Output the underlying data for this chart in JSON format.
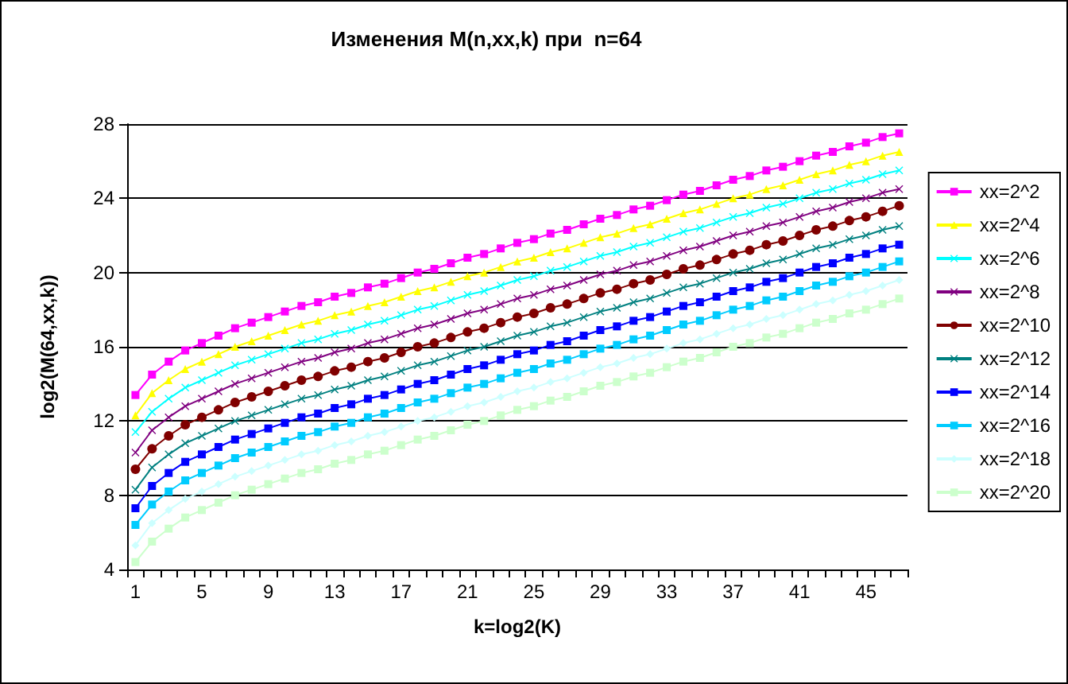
{
  "chart_data": {
    "type": "line",
    "title": "Изменения M(n,xx,k) при  n=64",
    "xlabel": "k=log2(K)",
    "ylabel": "log2(M(64,xx,k))",
    "categories": [
      "1",
      null,
      null,
      null,
      "5",
      null,
      null,
      null,
      "9",
      null,
      null,
      null,
      "13",
      null,
      null,
      null,
      "17",
      null,
      null,
      null,
      "21",
      null,
      null,
      null,
      "25",
      null,
      null,
      null,
      "29",
      null,
      null,
      null,
      "33",
      null,
      null,
      null,
      "37",
      null,
      null,
      null,
      "41",
      null,
      null,
      null,
      "45",
      null,
      null
    ],
    "ylim": [
      4,
      28
    ],
    "yticks": [
      4,
      8,
      12,
      16,
      20,
      24,
      28
    ],
    "grid": "y",
    "legend": "right",
    "series": [
      {
        "name": "xx=2^2",
        "color": "#ff00ff",
        "marker": "square",
        "values": [
          13.4,
          14.5,
          15.2,
          15.8,
          16.2,
          16.6,
          17.0,
          17.3,
          17.6,
          17.9,
          18.2,
          18.4,
          18.7,
          18.9,
          19.2,
          19.4,
          19.7,
          20.0,
          20.2,
          20.5,
          20.8,
          21.0,
          21.3,
          21.6,
          21.8,
          22.1,
          22.3,
          22.6,
          22.9,
          23.1,
          23.4,
          23.6,
          23.9,
          24.2,
          24.4,
          24.7,
          25.0,
          25.2,
          25.5,
          25.7,
          26.0,
          26.3,
          26.5,
          26.8,
          27.0,
          27.3,
          27.5
        ]
      },
      {
        "name": "xx=2^4",
        "color": "#ffff00",
        "marker": "triangle",
        "values": [
          12.3,
          13.5,
          14.2,
          14.8,
          15.2,
          15.6,
          16.0,
          16.3,
          16.6,
          16.9,
          17.2,
          17.4,
          17.7,
          17.9,
          18.2,
          18.4,
          18.7,
          19.0,
          19.2,
          19.5,
          19.8,
          20.0,
          20.3,
          20.6,
          20.8,
          21.1,
          21.3,
          21.6,
          21.9,
          22.1,
          22.4,
          22.6,
          22.9,
          23.2,
          23.4,
          23.7,
          24.0,
          24.2,
          24.5,
          24.7,
          25.0,
          25.3,
          25.5,
          25.8,
          26.0,
          26.3,
          26.5
        ]
      },
      {
        "name": "xx=2^6",
        "color": "#00ffff",
        "marker": "cross",
        "values": [
          11.4,
          12.5,
          13.2,
          13.8,
          14.2,
          14.6,
          15.0,
          15.3,
          15.6,
          15.9,
          16.2,
          16.4,
          16.7,
          16.9,
          17.2,
          17.4,
          17.7,
          18.0,
          18.2,
          18.5,
          18.8,
          19.0,
          19.3,
          19.6,
          19.8,
          20.1,
          20.3,
          20.6,
          20.9,
          21.1,
          21.4,
          21.6,
          21.9,
          22.2,
          22.4,
          22.7,
          23.0,
          23.2,
          23.5,
          23.7,
          24.0,
          24.3,
          24.5,
          24.8,
          25.0,
          25.3,
          25.5
        ]
      },
      {
        "name": "xx=2^8",
        "color": "#800080",
        "marker": "cross",
        "values": [
          10.3,
          11.5,
          12.2,
          12.8,
          13.2,
          13.6,
          14.0,
          14.3,
          14.6,
          14.9,
          15.2,
          15.4,
          15.7,
          15.9,
          16.2,
          16.4,
          16.7,
          17.0,
          17.2,
          17.5,
          17.8,
          18.0,
          18.3,
          18.6,
          18.8,
          19.1,
          19.3,
          19.6,
          19.9,
          20.1,
          20.4,
          20.6,
          20.9,
          21.2,
          21.4,
          21.7,
          22.0,
          22.2,
          22.5,
          22.7,
          23.0,
          23.3,
          23.5,
          23.8,
          24.0,
          24.3,
          24.5
        ]
      },
      {
        "name": "xx=2^10",
        "color": "#800000",
        "marker": "circle",
        "values": [
          9.4,
          10.5,
          11.2,
          11.8,
          12.2,
          12.6,
          13.0,
          13.3,
          13.6,
          13.9,
          14.2,
          14.4,
          14.7,
          14.9,
          15.2,
          15.4,
          15.7,
          16.0,
          16.2,
          16.5,
          16.8,
          17.0,
          17.3,
          17.6,
          17.8,
          18.1,
          18.3,
          18.6,
          18.9,
          19.1,
          19.4,
          19.6,
          19.9,
          20.2,
          20.4,
          20.7,
          21.0,
          21.2,
          21.5,
          21.7,
          22.0,
          22.3,
          22.5,
          22.8,
          23.0,
          23.3,
          23.6
        ]
      },
      {
        "name": "xx=2^12",
        "color": "#008080",
        "marker": "cross",
        "values": [
          8.3,
          9.5,
          10.2,
          10.8,
          11.2,
          11.6,
          12.0,
          12.3,
          12.6,
          12.9,
          13.2,
          13.4,
          13.7,
          13.9,
          14.2,
          14.4,
          14.7,
          15.0,
          15.2,
          15.5,
          15.8,
          16.0,
          16.3,
          16.6,
          16.8,
          17.1,
          17.3,
          17.6,
          17.9,
          18.1,
          18.4,
          18.6,
          18.9,
          19.2,
          19.4,
          19.7,
          20.0,
          20.2,
          20.5,
          20.7,
          21.0,
          21.3,
          21.5,
          21.8,
          22.0,
          22.3,
          22.5
        ]
      },
      {
        "name": "xx=2^14",
        "color": "#0000ff",
        "marker": "square",
        "values": [
          7.3,
          8.5,
          9.2,
          9.8,
          10.2,
          10.6,
          11.0,
          11.3,
          11.6,
          11.9,
          12.2,
          12.4,
          12.7,
          12.9,
          13.2,
          13.4,
          13.7,
          14.0,
          14.2,
          14.5,
          14.8,
          15.0,
          15.3,
          15.6,
          15.8,
          16.1,
          16.3,
          16.6,
          16.9,
          17.1,
          17.4,
          17.6,
          17.9,
          18.2,
          18.4,
          18.7,
          19.0,
          19.2,
          19.5,
          19.7,
          20.0,
          20.3,
          20.5,
          20.8,
          21.0,
          21.3,
          21.5
        ]
      },
      {
        "name": "xx=2^16",
        "color": "#00ccff",
        "marker": "square",
        "values": [
          6.4,
          7.5,
          8.2,
          8.8,
          9.2,
          9.6,
          10.0,
          10.3,
          10.6,
          10.9,
          11.2,
          11.4,
          11.7,
          11.9,
          12.2,
          12.4,
          12.7,
          13.0,
          13.2,
          13.5,
          13.8,
          14.0,
          14.3,
          14.6,
          14.8,
          15.1,
          15.3,
          15.6,
          15.9,
          16.1,
          16.4,
          16.6,
          16.9,
          17.2,
          17.4,
          17.7,
          18.0,
          18.2,
          18.5,
          18.7,
          19.0,
          19.3,
          19.5,
          19.8,
          20.0,
          20.3,
          20.6
        ]
      },
      {
        "name": "xx=2^18",
        "color": "#ccffff",
        "marker": "diamond",
        "values": [
          5.3,
          6.5,
          7.2,
          7.8,
          8.2,
          8.6,
          9.0,
          9.3,
          9.6,
          9.9,
          10.2,
          10.4,
          10.7,
          10.9,
          11.2,
          11.4,
          11.7,
          12.0,
          12.2,
          12.5,
          12.8,
          13.0,
          13.3,
          13.6,
          13.8,
          14.1,
          14.3,
          14.6,
          14.9,
          15.1,
          15.4,
          15.6,
          15.9,
          16.2,
          16.4,
          16.7,
          17.0,
          17.2,
          17.5,
          17.7,
          18.0,
          18.3,
          18.5,
          18.8,
          19.0,
          19.3,
          19.6
        ]
      },
      {
        "name": "xx=2^20",
        "color": "#ccffcc",
        "marker": "square",
        "values": [
          4.4,
          5.5,
          6.2,
          6.8,
          7.2,
          7.6,
          8.0,
          8.3,
          8.6,
          8.9,
          9.2,
          9.4,
          9.7,
          9.9,
          10.2,
          10.4,
          10.7,
          11.0,
          11.2,
          11.5,
          11.8,
          12.0,
          12.3,
          12.6,
          12.8,
          13.1,
          13.3,
          13.6,
          13.9,
          14.1,
          14.4,
          14.6,
          14.9,
          15.2,
          15.4,
          15.7,
          16.0,
          16.2,
          16.5,
          16.7,
          17.0,
          17.3,
          17.5,
          17.8,
          18.0,
          18.3,
          18.6
        ]
      }
    ]
  }
}
